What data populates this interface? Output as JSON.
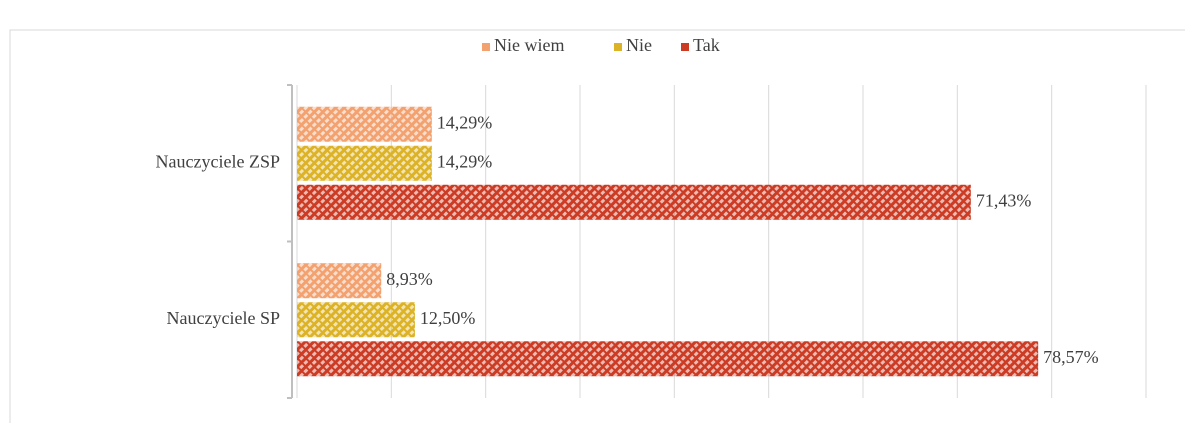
{
  "chart_data": {
    "type": "hbar",
    "categories": [
      "Nauczyciele ZSP",
      "Nauczyciele SP"
    ],
    "series": [
      {
        "name": "Nie wiem",
        "color": "#f2a16f",
        "values": [
          14.29,
          8.93
        ],
        "value_labels": [
          "14,29%",
          "8,93%"
        ]
      },
      {
        "name": "Nie",
        "color": "#dcb226",
        "values": [
          14.29,
          12.5
        ],
        "value_labels": [
          "14,29%",
          "12,50%"
        ]
      },
      {
        "name": "Tak",
        "color": "#cc3b24",
        "values": [
          71.43,
          78.57
        ],
        "value_labels": [
          "71,43%",
          "78,57%"
        ]
      }
    ],
    "xlim": [
      0,
      90
    ],
    "xticks": [
      0,
      10,
      20,
      30,
      40,
      50,
      60,
      70,
      80,
      90
    ],
    "grid": true,
    "legend": "top"
  }
}
